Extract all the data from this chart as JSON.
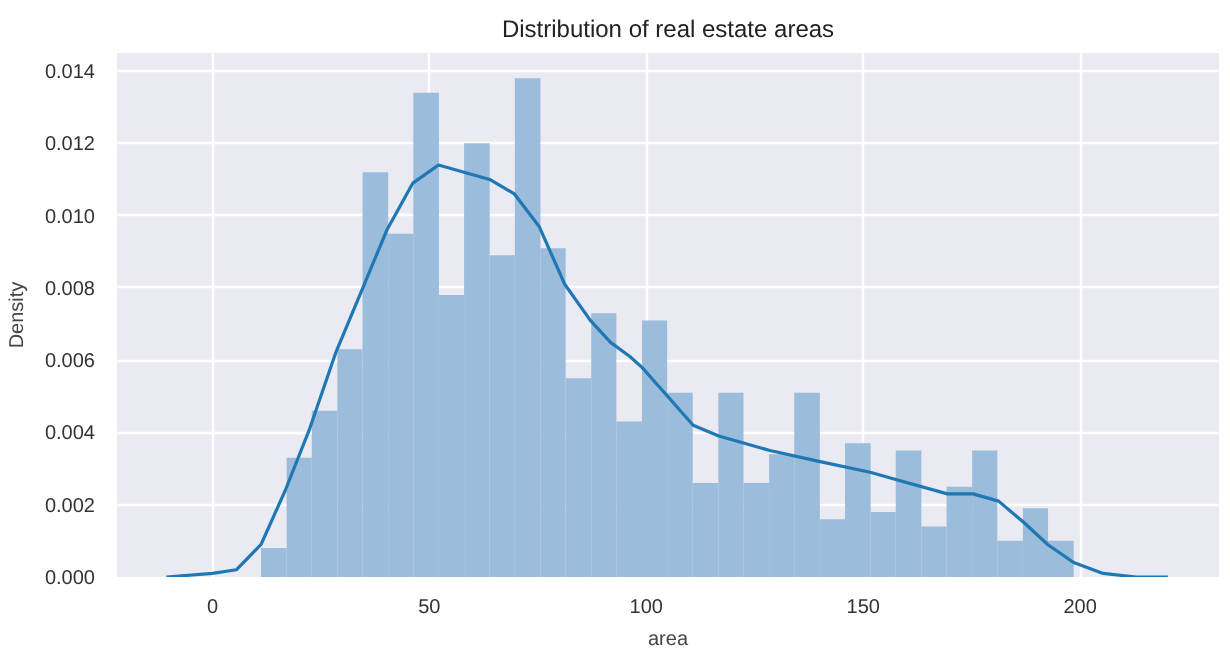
{
  "chart_data": {
    "type": "histogram",
    "title": "Distribution of real estate areas",
    "xlabel": "area",
    "ylabel": "Density",
    "xlim": [
      -22,
      232
    ],
    "ylim": [
      0,
      0.0145
    ],
    "xticks": [
      0,
      50,
      100,
      150,
      200
    ],
    "yticks": [
      {
        "value": 0,
        "label": "0.000"
      },
      {
        "value": 0.002,
        "label": "0.002"
      },
      {
        "value": 0.004,
        "label": "0.004"
      },
      {
        "value": 0.006,
        "label": "0.006"
      },
      {
        "value": 0.008,
        "label": "0.008"
      },
      {
        "value": 0.01,
        "label": "0.010"
      },
      {
        "value": 0.012,
        "label": "0.012"
      },
      {
        "value": 0.014,
        "label": "0.014"
      }
    ],
    "grid": true,
    "series": [
      {
        "color": "#9bbcda",
        "bins": [
          11.2,
          17.1,
          22.9,
          28.8,
          34.6,
          40.5,
          46.3,
          52.2,
          58.0,
          63.9,
          69.7,
          75.6,
          81.4,
          87.3,
          93.1,
          99.0,
          104.8,
          110.7,
          116.6,
          122.4,
          128.3,
          134.1,
          140.0,
          145.8,
          151.7,
          157.5,
          163.4,
          169.2,
          175.1,
          180.9,
          186.8,
          192.6,
          198.5
        ],
        "values": [
          0.0008,
          0.0033,
          0.0046,
          0.0063,
          0.0112,
          0.0095,
          0.0134,
          0.0078,
          0.012,
          0.0089,
          0.0138,
          0.0091,
          0.0055,
          0.0073,
          0.0043,
          0.0071,
          0.0051,
          0.0026,
          0.0051,
          0.0026,
          0.0034,
          0.0051,
          0.0016,
          0.0037,
          0.0018,
          0.0035,
          0.0014,
          0.0025,
          0.0035,
          0.001,
          0.0019,
          0.001
        ]
      },
      {
        "type": "line",
        "color": "#1f77b4",
        "x": [
          -10.6,
          0,
          5.5,
          11.2,
          16.8,
          22.4,
          28.4,
          34.3,
          40.2,
          46.2,
          52.1,
          58.0,
          63.9,
          69.6,
          75.3,
          81.2,
          87.1,
          91.7,
          96.2,
          99.0,
          104.9,
          110.8,
          116.7,
          122.6,
          128.5,
          139.8,
          151.6,
          157.5,
          169.4,
          175.3,
          181.2,
          187.1,
          192.5,
          198.5,
          205.3,
          212.9,
          220.2
        ],
        "values": [
          0.0,
          0.0001,
          0.0002,
          0.0009,
          0.0024,
          0.0041,
          0.0062,
          0.0079,
          0.0096,
          0.0109,
          0.0114,
          0.0112,
          0.011,
          0.0106,
          0.0097,
          0.0081,
          0.0071,
          0.0065,
          0.0061,
          0.0058,
          0.005,
          0.0042,
          0.0039,
          0.0037,
          0.0035,
          0.0032,
          0.0029,
          0.0027,
          0.0023,
          0.0023,
          0.0021,
          0.0015,
          0.0009,
          0.0004,
          0.0001,
          0.0,
          0.0
        ]
      }
    ]
  }
}
